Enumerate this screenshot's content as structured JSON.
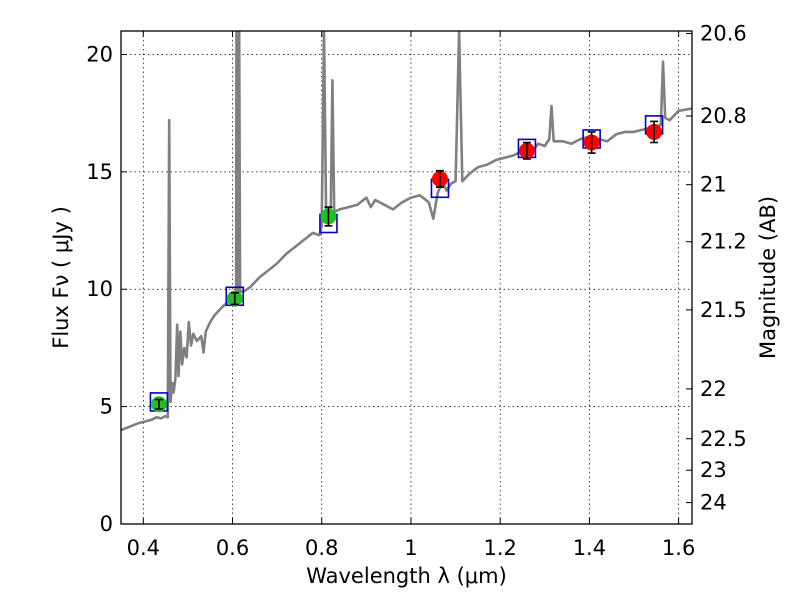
{
  "chart_data": {
    "type": "scatter",
    "xlabel": "Wavelength  λ (μm)",
    "ylabel": "Flux  Fν  ( μJy )",
    "y2label": "Magnitude (AB)",
    "xlim": [
      0.35,
      1.63
    ],
    "ylim": [
      0,
      21
    ],
    "grid": true,
    "x_ticks": [
      {
        "value": 0.4,
        "label": "0.4"
      },
      {
        "value": 0.6,
        "label": "0.6"
      },
      {
        "value": 0.8,
        "label": "0.8"
      },
      {
        "value": 1.0,
        "label": "1"
      },
      {
        "value": 1.2,
        "label": "1.2"
      },
      {
        "value": 1.4,
        "label": "1.4"
      },
      {
        "value": 1.6,
        "label": "1.6"
      }
    ],
    "y_ticks": [
      {
        "value": 0,
        "label": "0"
      },
      {
        "value": 5,
        "label": "5"
      },
      {
        "value": 10,
        "label": "10"
      },
      {
        "value": 15,
        "label": "15"
      },
      {
        "value": 20,
        "label": "20"
      }
    ],
    "mag_ticks": [
      {
        "value": 20.6,
        "label": "20.6"
      },
      {
        "value": 20.8,
        "label": "20.8"
      },
      {
        "value": 21.0,
        "label": "21"
      },
      {
        "value": 21.2,
        "label": "21.2"
      },
      {
        "value": 21.5,
        "label": "21.5"
      },
      {
        "value": 22.0,
        "label": "22"
      },
      {
        "value": 22.5,
        "label": "22.5"
      },
      {
        "value": 23.0,
        "label": "23"
      },
      {
        "value": 24.0,
        "label": "24"
      }
    ],
    "series": [
      {
        "kind": "line",
        "color": "#808080",
        "points": [
          [
            0.35,
            4.0
          ],
          [
            0.37,
            4.15
          ],
          [
            0.39,
            4.3
          ],
          [
            0.41,
            4.4
          ],
          [
            0.42,
            4.45
          ],
          [
            0.43,
            4.55
          ],
          [
            0.44,
            4.5
          ],
          [
            0.45,
            4.6
          ],
          [
            0.455,
            4.55
          ],
          [
            0.458,
            17.2
          ],
          [
            0.461,
            5.2
          ],
          [
            0.465,
            6.0
          ],
          [
            0.468,
            5.6
          ],
          [
            0.472,
            6.2
          ],
          [
            0.476,
            8.5
          ],
          [
            0.479,
            6.3
          ],
          [
            0.483,
            8.2
          ],
          [
            0.487,
            6.8
          ],
          [
            0.492,
            7.5
          ],
          [
            0.497,
            7.1
          ],
          [
            0.502,
            8.6
          ],
          [
            0.507,
            7.6
          ],
          [
            0.512,
            8.1
          ],
          [
            0.52,
            7.8
          ],
          [
            0.53,
            8.0
          ],
          [
            0.535,
            7.3
          ],
          [
            0.54,
            8.2
          ],
          [
            0.55,
            8.6
          ],
          [
            0.56,
            8.9
          ],
          [
            0.57,
            9.1
          ],
          [
            0.58,
            9.3
          ],
          [
            0.59,
            9.45
          ],
          [
            0.6,
            9.6
          ],
          [
            0.605,
            9.5
          ],
          [
            0.608,
            9.7
          ],
          [
            0.609,
            21
          ],
          [
            0.611,
            9.8
          ],
          [
            0.613,
            9.8
          ],
          [
            0.615,
            21
          ],
          [
            0.617,
            9.9
          ],
          [
            0.625,
            9.9
          ],
          [
            0.64,
            10.1
          ],
          [
            0.66,
            10.5
          ],
          [
            0.68,
            10.8
          ],
          [
            0.7,
            11.1
          ],
          [
            0.72,
            11.5
          ],
          [
            0.74,
            11.8
          ],
          [
            0.76,
            12.1
          ],
          [
            0.78,
            12.4
          ],
          [
            0.795,
            12.3
          ],
          [
            0.8,
            12.7
          ],
          [
            0.805,
            21
          ],
          [
            0.81,
            12.9
          ],
          [
            0.82,
            13.1
          ],
          [
            0.824,
            18.9
          ],
          [
            0.828,
            13.3
          ],
          [
            0.84,
            13.4
          ],
          [
            0.86,
            13.5
          ],
          [
            0.88,
            13.6
          ],
          [
            0.9,
            13.9
          ],
          [
            0.91,
            13.5
          ],
          [
            0.92,
            13.8
          ],
          [
            0.94,
            13.6
          ],
          [
            0.96,
            13.4
          ],
          [
            0.98,
            13.7
          ],
          [
            1.0,
            13.9
          ],
          [
            1.02,
            14.0
          ],
          [
            1.04,
            13.7
          ],
          [
            1.05,
            13.0
          ],
          [
            1.06,
            14.1
          ],
          [
            1.07,
            14.6
          ],
          [
            1.08,
            14.2
          ],
          [
            1.09,
            14.5
          ],
          [
            1.1,
            14.6
          ],
          [
            1.108,
            21
          ],
          [
            1.115,
            14.6
          ],
          [
            1.13,
            14.9
          ],
          [
            1.15,
            15.2
          ],
          [
            1.17,
            15.3
          ],
          [
            1.19,
            15.5
          ],
          [
            1.21,
            15.6
          ],
          [
            1.23,
            15.7
          ],
          [
            1.25,
            15.9
          ],
          [
            1.26,
            16.0
          ],
          [
            1.27,
            15.8
          ],
          [
            1.285,
            16.2
          ],
          [
            1.3,
            16.1
          ],
          [
            1.31,
            16.4
          ],
          [
            1.315,
            17.8
          ],
          [
            1.32,
            16.3
          ],
          [
            1.34,
            16.3
          ],
          [
            1.36,
            16.2
          ],
          [
            1.38,
            16.4
          ],
          [
            1.4,
            16.5
          ],
          [
            1.42,
            16.4
          ],
          [
            1.44,
            16.3
          ],
          [
            1.46,
            16.6
          ],
          [
            1.48,
            16.7
          ],
          [
            1.5,
            16.7
          ],
          [
            1.52,
            16.8
          ],
          [
            1.54,
            16.9
          ],
          [
            1.56,
            17.0
          ],
          [
            1.565,
            19.7
          ],
          [
            1.57,
            17.3
          ],
          [
            1.58,
            17.2
          ],
          [
            1.6,
            17.6
          ],
          [
            1.63,
            17.7
          ]
        ]
      },
      {
        "kind": "squares",
        "color": "#0000cc",
        "points": [
          [
            0.435,
            5.2
          ],
          [
            0.605,
            9.7
          ],
          [
            0.815,
            12.8
          ],
          [
            1.065,
            14.3
          ],
          [
            1.26,
            16.0
          ],
          [
            1.405,
            16.4
          ],
          [
            1.545,
            17.0
          ]
        ]
      },
      {
        "kind": "markers",
        "color": "#20c020",
        "points": [
          {
            "x": 0.435,
            "y": 5.1,
            "err": 0.2
          },
          {
            "x": 0.605,
            "y": 9.6,
            "err": 0.25
          },
          {
            "x": 0.815,
            "y": 13.1,
            "err": 0.4
          }
        ]
      },
      {
        "kind": "markers",
        "color": "#ff0000",
        "points": [
          {
            "x": 1.065,
            "y": 14.7,
            "err": 0.35
          },
          {
            "x": 1.26,
            "y": 15.9,
            "err": 0.35
          },
          {
            "x": 1.405,
            "y": 16.25,
            "err": 0.45
          },
          {
            "x": 1.545,
            "y": 16.7,
            "err": 0.45
          }
        ]
      }
    ]
  }
}
